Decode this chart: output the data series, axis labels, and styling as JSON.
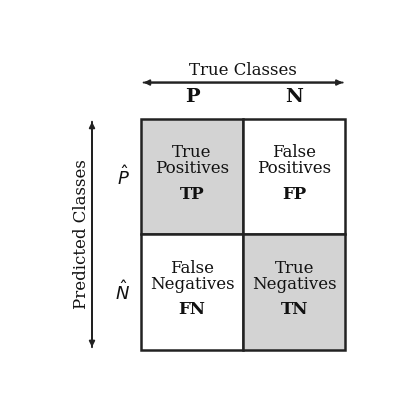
{
  "title_top": "True Classes",
  "title_left": "Predicted Classes",
  "col_labels": [
    "P",
    "N"
  ],
  "row_label_top": "$\\hat{P}$",
  "row_label_bot": "$\\hat{N}$",
  "cells": [
    [
      {
        "lines": [
          "True",
          "Positives"
        ],
        "abbr": "TP",
        "bg": "#d3d3d3"
      },
      {
        "lines": [
          "False",
          "Positives"
        ],
        "abbr": "FP",
        "bg": "#ffffff"
      }
    ],
    [
      {
        "lines": [
          "False",
          "Negatives"
        ],
        "abbr": "FN",
        "bg": "#ffffff"
      },
      {
        "lines": [
          "True",
          "Negatives"
        ],
        "abbr": "TN",
        "bg": "#d3d3d3"
      }
    ]
  ],
  "grid_color": "#222222",
  "text_color": "#111111",
  "bg_color": "#ffffff",
  "fig_width": 3.94,
  "fig_height": 4.11,
  "dpi": 100
}
